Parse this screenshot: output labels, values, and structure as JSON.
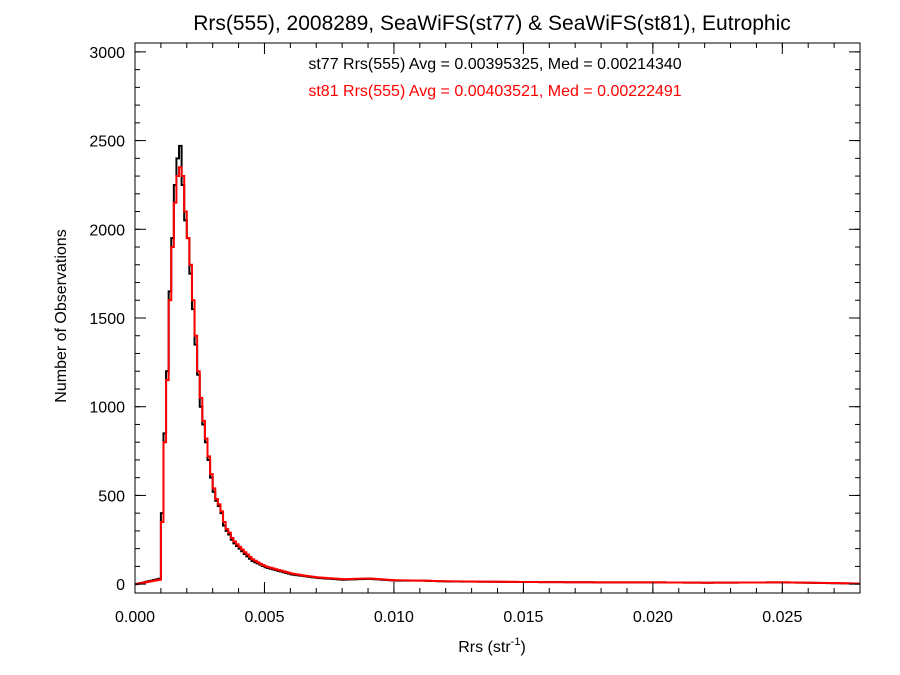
{
  "chart_data": {
    "type": "line",
    "title": "Rrs(555), 2008289, SeaWiFS(st77) & SeaWiFS(st81), Eutrophic",
    "xlabel": {
      "base": "Rrs (str",
      "sup": "-1",
      "tail": ")"
    },
    "ylabel": "Number of Observations",
    "xlim": [
      0,
      0.028
    ],
    "ylim": [
      -50,
      3050
    ],
    "xticks": [
      0.0,
      0.005,
      0.01,
      0.015,
      0.02,
      0.025
    ],
    "xtick_labels": [
      "0.000",
      "0.005",
      "0.010",
      "0.015",
      "0.020",
      "0.025"
    ],
    "yticks": [
      0,
      500,
      1000,
      1500,
      2000,
      2500,
      3000
    ],
    "ytick_labels": [
      "0",
      "500",
      "1000",
      "1500",
      "2000",
      "2500",
      "3000"
    ],
    "bin_width": 0.0001,
    "grid": false,
    "series": [
      {
        "name": "st77",
        "color": "#000000",
        "annotation": "st77 Rrs(555) Avg = 0.00395325, Med = 0.00214340",
        "x": [
          0.0,
          0.0009,
          0.001,
          0.0011,
          0.0012,
          0.0013,
          0.0014,
          0.0015,
          0.0016,
          0.0017,
          0.0018,
          0.0019,
          0.002,
          0.0021,
          0.0022,
          0.0023,
          0.0024,
          0.0025,
          0.0026,
          0.0027,
          0.0028,
          0.0029,
          0.003,
          0.0031,
          0.0032,
          0.0033,
          0.0034,
          0.0035,
          0.0036,
          0.0037,
          0.0038,
          0.004,
          0.0042,
          0.0045,
          0.0048,
          0.005,
          0.0055,
          0.006,
          0.0065,
          0.007,
          0.008,
          0.009,
          0.01,
          0.011,
          0.012,
          0.015,
          0.018,
          0.02,
          0.022,
          0.025,
          0.027,
          0.028
        ],
        "y": [
          0,
          30,
          400,
          850,
          1200,
          1650,
          1950,
          2250,
          2400,
          2470,
          2250,
          2050,
          1950,
          1750,
          1550,
          1350,
          1180,
          1000,
          900,
          800,
          700,
          600,
          520,
          470,
          440,
          400,
          330,
          300,
          280,
          250,
          230,
          200,
          170,
          130,
          110,
          95,
          75,
          55,
          45,
          35,
          25,
          30,
          20,
          20,
          15,
          12,
          10,
          10,
          8,
          10,
          5,
          3
        ]
      },
      {
        "name": "st81",
        "color": "#ff0000",
        "annotation": "st81 Rrs(555) Avg = 0.00403521, Med = 0.00222491",
        "x": [
          0.0,
          0.0009,
          0.001,
          0.0011,
          0.0012,
          0.0013,
          0.0014,
          0.0015,
          0.0016,
          0.0017,
          0.0018,
          0.0019,
          0.002,
          0.0021,
          0.0022,
          0.0023,
          0.0024,
          0.0025,
          0.0026,
          0.0027,
          0.0028,
          0.0029,
          0.003,
          0.0031,
          0.0032,
          0.0033,
          0.0034,
          0.0035,
          0.0036,
          0.0037,
          0.0038,
          0.004,
          0.0042,
          0.0045,
          0.0048,
          0.005,
          0.0055,
          0.006,
          0.0065,
          0.007,
          0.008,
          0.009,
          0.01,
          0.011,
          0.012,
          0.015,
          0.018,
          0.02,
          0.022,
          0.025,
          0.027,
          0.028
        ],
        "y": [
          0,
          25,
          350,
          800,
          1150,
          1600,
          1900,
          2150,
          2300,
          2350,
          2300,
          2100,
          1950,
          1800,
          1600,
          1400,
          1200,
          1050,
          920,
          820,
          720,
          620,
          540,
          480,
          450,
          410,
          350,
          310,
          290,
          260,
          240,
          210,
          180,
          140,
          115,
          100,
          80,
          60,
          48,
          38,
          28,
          32,
          22,
          20,
          16,
          12,
          10,
          10,
          8,
          10,
          6,
          3
        ]
      }
    ]
  }
}
